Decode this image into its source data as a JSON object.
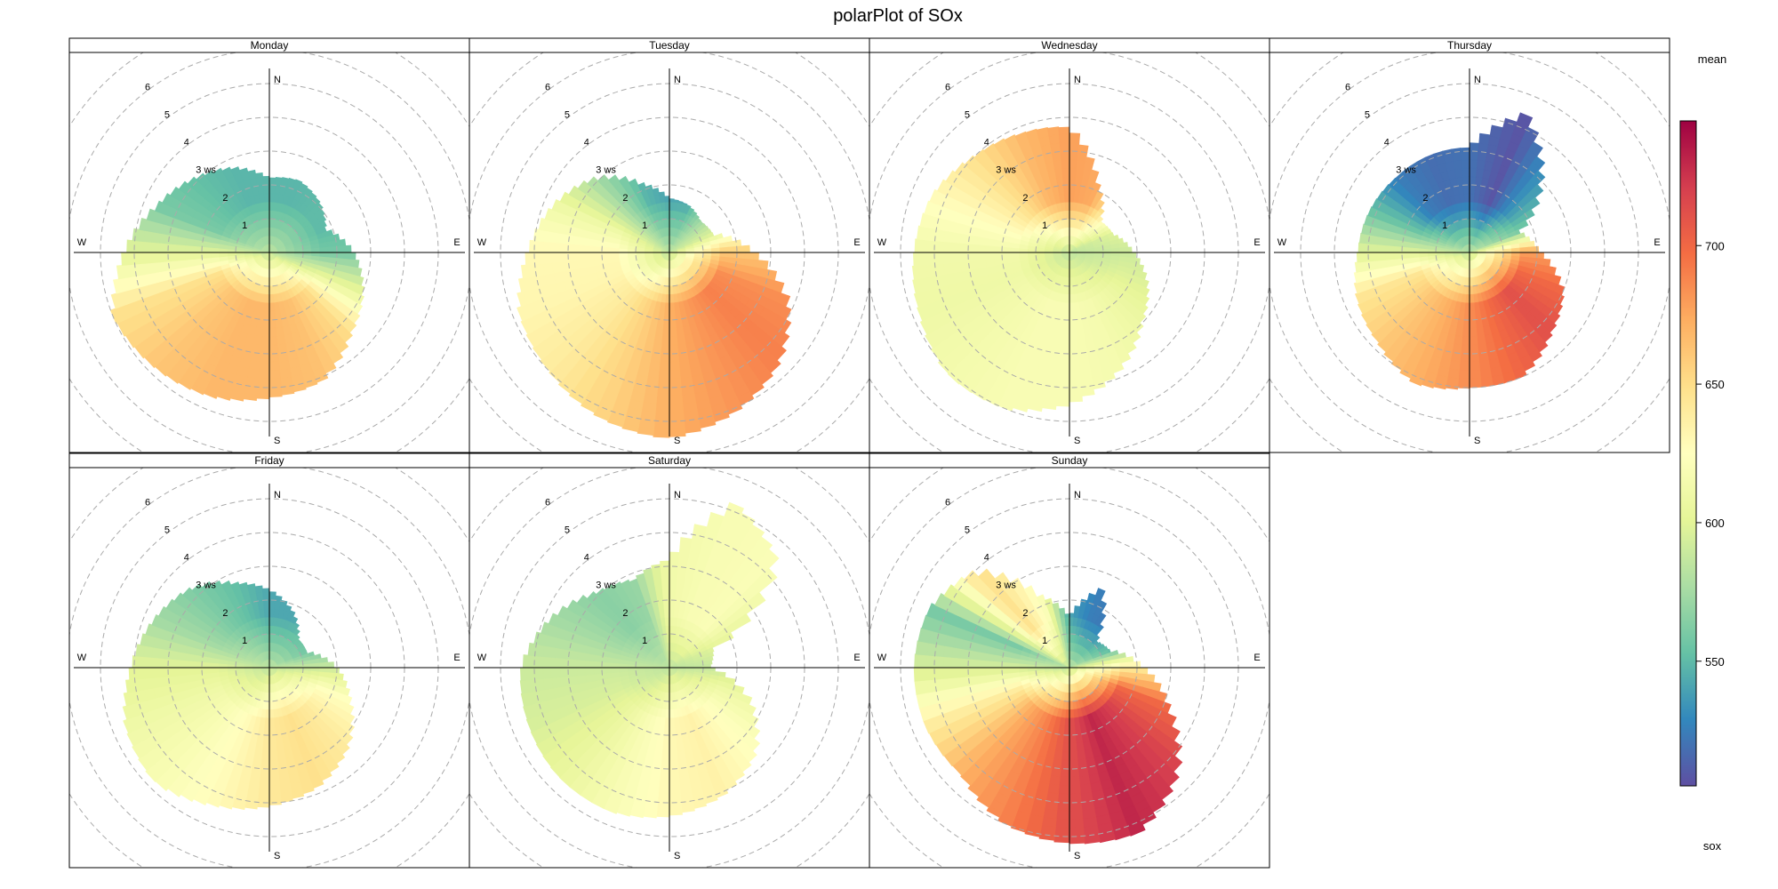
{
  "title": "polarPlot of SOx",
  "chart_data": {
    "type": "heatmap",
    "title": "polarPlot of SOx",
    "polar": true,
    "grid": "dashed concentric circles",
    "direction_labels": [
      "N",
      "E",
      "S",
      "W"
    ],
    "ring_values": [
      1,
      2,
      3,
      4,
      5,
      6
    ],
    "ring_labels": [
      "1",
      "2",
      "3 ws",
      "4",
      "5",
      "6"
    ],
    "colorbar": {
      "title": "mean",
      "variable": "sox",
      "range": [
        505,
        745
      ],
      "ticks": [
        550,
        600,
        650,
        700
      ],
      "tick_labels": [
        "550",
        "600",
        "650",
        "700"
      ],
      "palette": [
        "#5E4FA2",
        "#3288BD",
        "#66C2A5",
        "#ABDDA4",
        "#E6F598",
        "#FFFFBF",
        "#FEE08B",
        "#FDAE61",
        "#F46D43",
        "#D53E4F",
        "#9E0142"
      ],
      "placement": "right"
    },
    "panels": [
      {
        "name": "Monday",
        "extent": [
          2.2,
          2.3,
          2.1,
          1.8,
          2.5,
          3.0,
          3.4,
          4.1,
          4.3,
          4.6,
          4.8,
          5.0,
          4.3,
          3.6,
          3.1,
          2.7
        ],
        "profile": [
          548,
          548,
          550,
          550,
          558,
          600,
          650,
          664,
          668,
          668,
          662,
          648,
          600,
          560,
          552,
          548
        ]
      },
      {
        "name": "Tuesday",
        "extent": [
          1.6,
          1.5,
          1.3,
          1.4,
          2.5,
          3.8,
          4.6,
          5.1,
          5.5,
          5.3,
          5.0,
          4.8,
          4.2,
          3.7,
          3.1,
          2.2
        ],
        "profile": [
          540,
          542,
          570,
          600,
          660,
          685,
          690,
          682,
          672,
          655,
          640,
          632,
          630,
          610,
          575,
          548
        ]
      },
      {
        "name": "Wednesday",
        "extent": [
          3.7,
          2.2,
          1.3,
          1.4,
          1.9,
          2.5,
          3.0,
          3.8,
          4.5,
          5.0,
          5.1,
          4.8,
          4.6,
          4.4,
          4.0,
          3.8
        ],
        "profile": [
          678,
          674,
          640,
          600,
          590,
          598,
          608,
          615,
          618,
          618,
          614,
          610,
          612,
          628,
          648,
          668
        ]
      },
      {
        "name": "Thursday",
        "extent": [
          3.1,
          4.4,
          3.0,
          1.6,
          2.1,
          3.0,
          3.4,
          4.0,
          4.0,
          4.2,
          3.8,
          3.6,
          3.3,
          3.2,
          3.1,
          3.1
        ],
        "profile": [
          520,
          508,
          535,
          560,
          678,
          700,
          712,
          700,
          685,
          672,
          660,
          645,
          600,
          555,
          525,
          518
        ]
      },
      {
        "name": "Friday",
        "extent": [
          2.3,
          1.8,
          1.2,
          1.2,
          2.0,
          2.6,
          3.3,
          3.8,
          4.1,
          4.4,
          4.8,
          4.6,
          4.1,
          3.7,
          3.3,
          2.7
        ],
        "profile": [
          542,
          542,
          545,
          550,
          590,
          625,
          640,
          648,
          642,
          628,
          618,
          610,
          600,
          575,
          562,
          552
        ]
      },
      {
        "name": "Saturday",
        "extent": [
          3.2,
          5.2,
          4.5,
          1.4,
          1.2,
          2.6,
          3.6,
          4.1,
          4.4,
          4.6,
          4.6,
          4.5,
          4.4,
          3.8,
          3.1,
          2.8
        ],
        "profile": [
          612,
          618,
          620,
          600,
          588,
          610,
          625,
          635,
          630,
          618,
          605,
          595,
          590,
          575,
          565,
          570
        ]
      },
      {
        "name": "Sunday",
        "extent": [
          1.5,
          2.5,
          1.1,
          1.3,
          2.2,
          3.2,
          4.5,
          5.3,
          5.2,
          5.0,
          4.5,
          4.6,
          4.6,
          4.5,
          4.0,
          2.3
        ],
        "profile": [
          540,
          525,
          522,
          545,
          640,
          700,
          720,
          730,
          712,
          690,
          672,
          640,
          595,
          560,
          650,
          620
        ]
      }
    ],
    "note": "extent and profile are listed at 16 compass directions starting from N, going clockwise (N, NNE, NE, ..., NNW); extent is wind speed reach (ws units), profile is mean sox at the outer part of the surface"
  }
}
